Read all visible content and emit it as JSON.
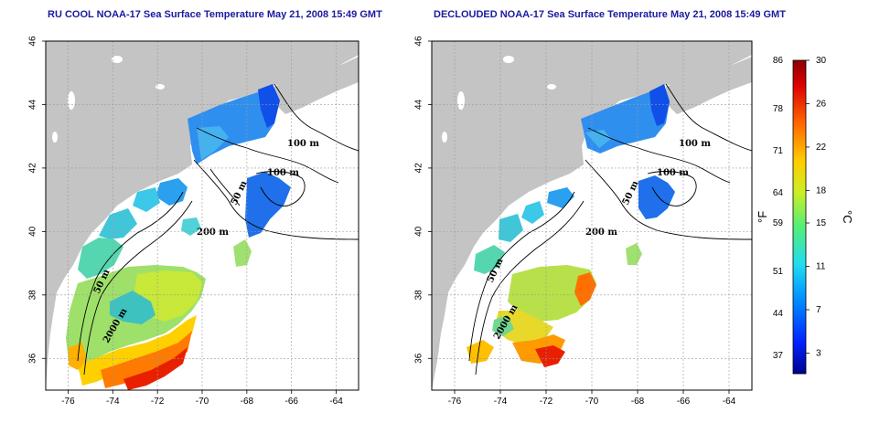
{
  "panels": [
    {
      "id": "left",
      "title": "RU COOL NOAA-17 Sea Surface Temperature May 21, 2008 15:49 GMT",
      "contours": [
        "100 m",
        "100 m",
        "50 m",
        "200 m",
        "50 m",
        "2000 m"
      ]
    },
    {
      "id": "right",
      "title": "DECLOUDED NOAA-17 Sea Surface Temperature May 21, 2008 15:49 GMT",
      "contours": [
        "100 m",
        "100 m",
        "50 m",
        "200 m",
        "50 m",
        "2000 m"
      ]
    }
  ],
  "axes": {
    "lon_ticks": [
      "-76",
      "-74",
      "-72",
      "-70",
      "-68",
      "-66",
      "-64"
    ],
    "lat_ticks": [
      "36",
      "38",
      "40",
      "42",
      "44",
      "46"
    ],
    "lon_range": [
      -77,
      -63
    ],
    "lat_range": [
      35,
      46
    ]
  },
  "colorbar": {
    "unit_f": "°F",
    "unit_c": "°C",
    "ticks_f": [
      "86",
      "78",
      "71",
      "64",
      "59",
      "51",
      "44",
      "37"
    ],
    "ticks_c": [
      "30",
      "26",
      "22",
      "18",
      "15",
      "11",
      "7",
      "3"
    ],
    "colors": [
      "#00008c",
      "#0033ff",
      "#0099ff",
      "#22ddee",
      "#55ee77",
      "#ccee22",
      "#ffcc00",
      "#ff6600",
      "#cc0000",
      "#8b0000"
    ]
  },
  "colors": {
    "land": "#c4c4c4",
    "title": "#1a1aa0",
    "grid": "#9a9a9a"
  }
}
